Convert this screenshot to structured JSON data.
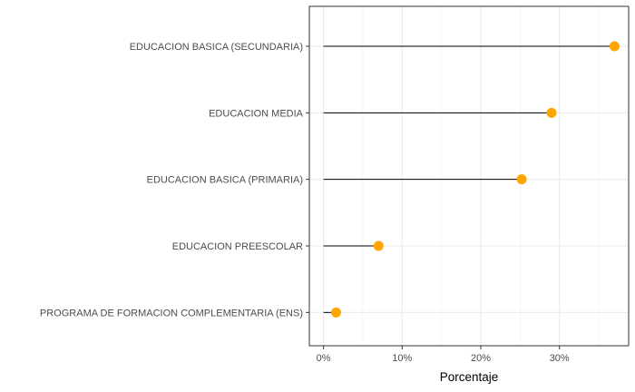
{
  "chart_data": {
    "type": "lollipop",
    "title": "",
    "xlabel": "Porcentaje",
    "ylabel": "",
    "xlim": [
      -0.018,
      0.388
    ],
    "x_ticks": [
      0,
      0.1,
      0.2,
      0.3
    ],
    "x_tick_labels": [
      "0%",
      "10%",
      "20%",
      "30%"
    ],
    "categories": [
      "EDUCACION BASICA (SECUNDARIA)",
      "EDUCACION MEDIA",
      "EDUCACION BASICA (PRIMARIA)",
      "EDUCACION PREESCOLAR",
      "PROGRAMA DE FORMACION COMPLEMENTARIA (ENS)"
    ],
    "values": [
      0.37,
      0.29,
      0.252,
      0.07,
      0.016
    ],
    "point_color": "#FFA500",
    "segment_color": "#000000",
    "grid": true,
    "legend": "none"
  }
}
